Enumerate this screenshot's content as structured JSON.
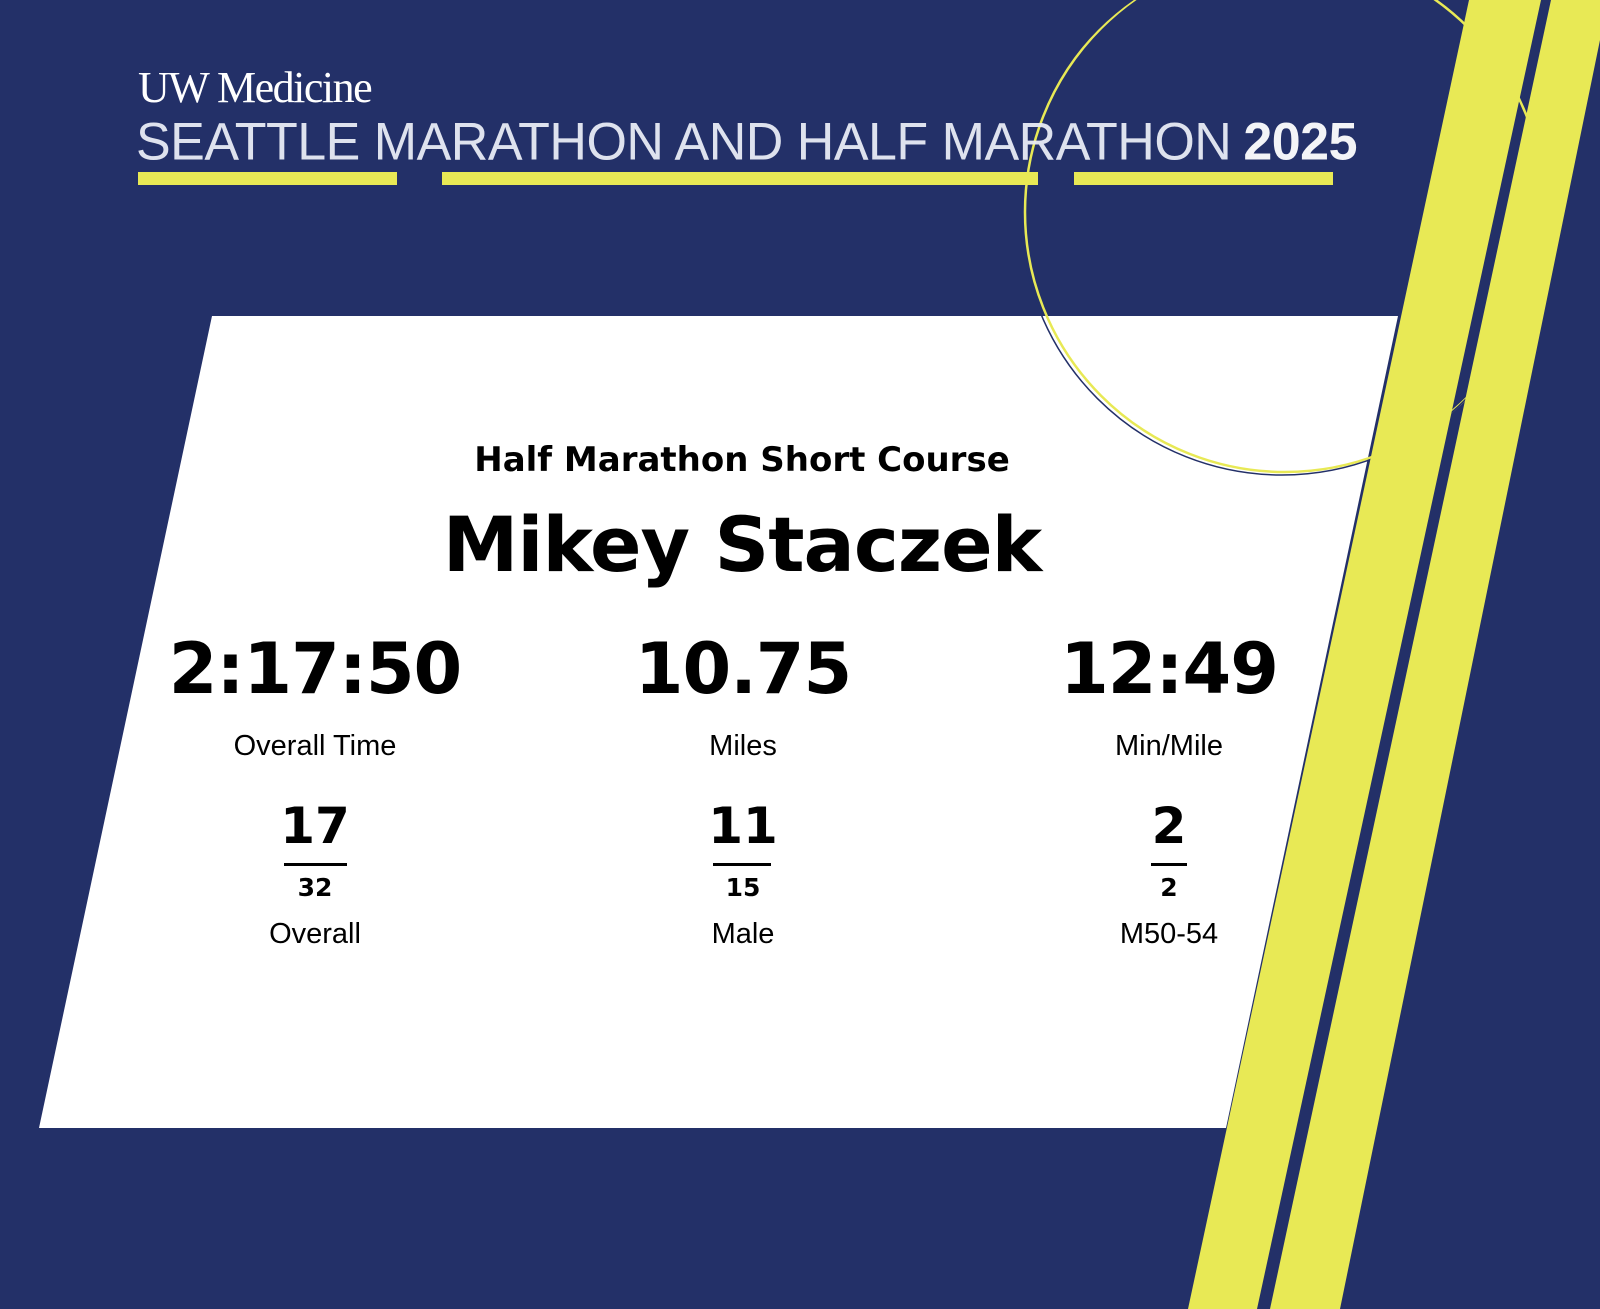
{
  "colors": {
    "background": "#233068",
    "accent": "#e8e955",
    "card": "#ffffff"
  },
  "header": {
    "logo": "UW Medicine",
    "event": "SEATTLE MARATHON AND HALF MARATHON",
    "year": "2025"
  },
  "result": {
    "race": "Half Marathon Short Course",
    "name": "Mikey Staczek",
    "stats": [
      {
        "value": "2:17:50",
        "label": "Overall Time"
      },
      {
        "value": "10.75",
        "label": "Miles"
      },
      {
        "value": "12:49",
        "label": "Min/Mile"
      }
    ],
    "ranks": [
      {
        "place": "17",
        "total": "32",
        "label": "Overall"
      },
      {
        "place": "11",
        "total": "15",
        "label": "Male"
      },
      {
        "place": "2",
        "total": "2",
        "label": "M50-54"
      }
    ]
  }
}
